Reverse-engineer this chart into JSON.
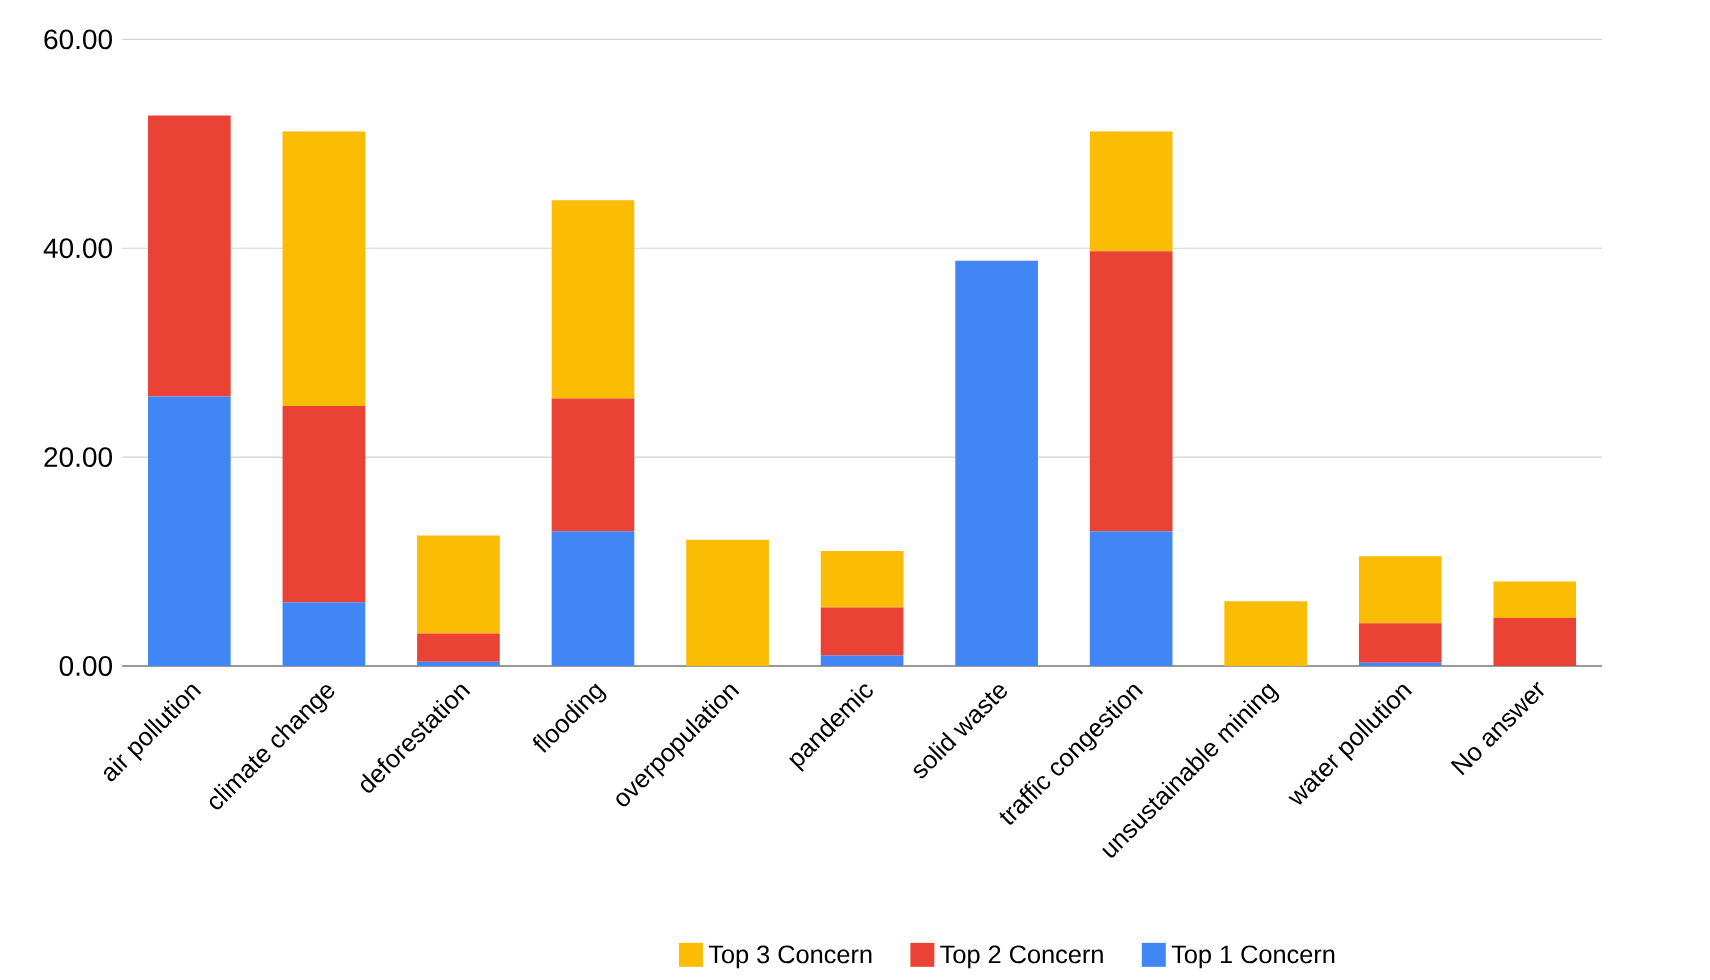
{
  "chart_data": {
    "type": "bar",
    "stacked": true,
    "categories": [
      "air pollution",
      "climate change",
      "deforestation",
      "flooding",
      "overpopulation",
      "pandemic",
      "solid waste",
      "traffic congestion",
      "unsustainable mining",
      "water pollution",
      "No answer"
    ],
    "series": [
      {
        "name": "Top 1 Concern",
        "color": "#4285f4",
        "values": [
          25.8,
          6.1,
          0.4,
          12.9,
          0,
          1.0,
          38.8,
          12.9,
          0,
          0.3,
          0
        ]
      },
      {
        "name": "Top 2 Concern",
        "color": "#ea4335",
        "values": [
          26.9,
          18.8,
          2.7,
          12.7,
          0,
          4.6,
          0,
          26.8,
          0,
          3.8,
          4.6
        ]
      },
      {
        "name": "Top 3 Concern",
        "color": "#fbbc04",
        "values": [
          0,
          26.3,
          9.4,
          19.0,
          12.1,
          5.4,
          0,
          11.5,
          6.2,
          6.4,
          3.5
        ]
      }
    ],
    "ylim": [
      0,
      60
    ],
    "yticks": [
      {
        "value": 0,
        "label": "0.00"
      },
      {
        "value": 20,
        "label": "20.00"
      },
      {
        "value": 40,
        "label": "40.00"
      },
      {
        "value": 60,
        "label": "60.00"
      }
    ],
    "grid": "y",
    "legend": "bottom"
  }
}
